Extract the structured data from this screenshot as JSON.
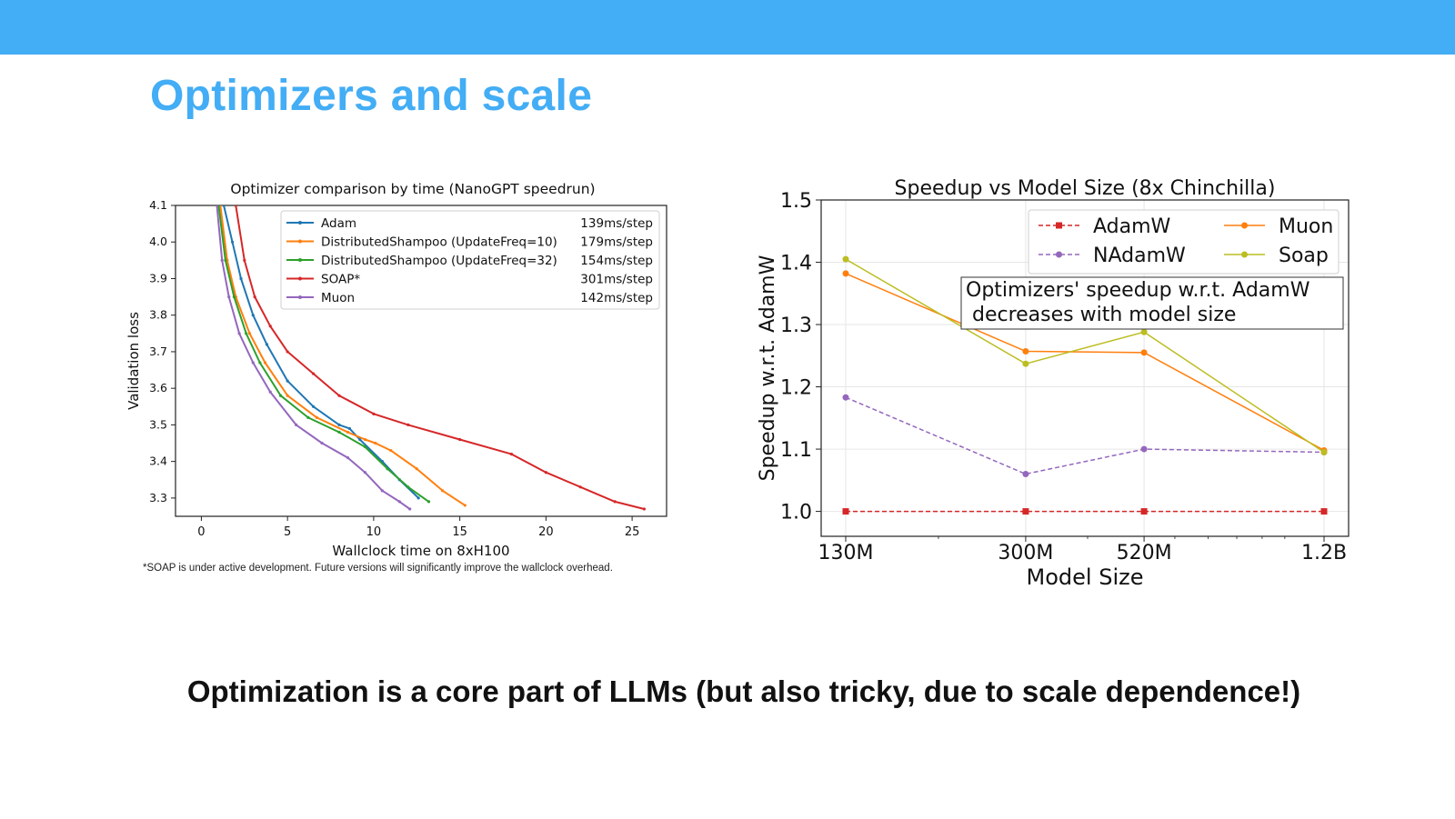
{
  "slide": {
    "title": "Optimizers and scale",
    "title_color": "#43adf5",
    "bar_color": "#43adf5",
    "footnote": "*SOAP is under active development. Future versions will significantly improve the wallclock overhead.",
    "tagline": "Optimization is a core part of LLMs (but also tricky, due to scale dependence!)"
  },
  "chart_data": [
    {
      "type": "line",
      "title": "Optimizer comparison by time (NanoGPT speedrun)",
      "xlabel": "Wallclock time on 8xH100",
      "ylabel": "Validation loss",
      "xlim": [
        -1.5,
        27
      ],
      "ylim": [
        3.25,
        4.1
      ],
      "xticks": [
        0,
        5,
        10,
        15,
        20,
        25
      ],
      "yticks": [
        3.3,
        3.4,
        3.5,
        3.6,
        3.7,
        3.8,
        3.9,
        4.0,
        4.1
      ],
      "ytick_labels": [
        "3.3",
        "3.4",
        "3.5",
        "3.6",
        "3.7",
        "3.8",
        "3.9",
        "4.0",
        "4.1"
      ],
      "legend_position": "top-right",
      "grid": false,
      "series": [
        {
          "name": "Adam",
          "note": "139ms/step",
          "color": "#1f77b4",
          "x": [
            1.3,
            1.8,
            2.3,
            3.0,
            3.8,
            5.0,
            6.5,
            8.0,
            8.6,
            9.2,
            10.5,
            11.5,
            12.6
          ],
          "y": [
            4.1,
            4.0,
            3.9,
            3.8,
            3.72,
            3.62,
            3.55,
            3.5,
            3.49,
            3.46,
            3.4,
            3.35,
            3.3
          ]
        },
        {
          "name": "DistributedShampoo (UpdateFreq=10)",
          "note": "179ms/step",
          "color": "#ff7f0e",
          "x": [
            1.1,
            1.5,
            2.0,
            2.8,
            3.7,
            5.0,
            6.7,
            8.5,
            9.5,
            10.1,
            11.0,
            12.5,
            14.0,
            15.3
          ],
          "y": [
            4.1,
            3.95,
            3.85,
            3.75,
            3.67,
            3.58,
            3.52,
            3.48,
            3.46,
            3.45,
            3.43,
            3.38,
            3.32,
            3.28
          ]
        },
        {
          "name": "DistributedShampoo (UpdateFreq=32)",
          "note": "154ms/step",
          "color": "#2ca02c",
          "x": [
            1.0,
            1.4,
            1.9,
            2.6,
            3.4,
            4.6,
            6.2,
            8.0,
            9.5,
            10.8,
            12.0,
            13.2
          ],
          "y": [
            4.1,
            3.95,
            3.85,
            3.75,
            3.67,
            3.58,
            3.52,
            3.48,
            3.44,
            3.38,
            3.33,
            3.29
          ]
        },
        {
          "name": "SOAP*",
          "note": "301ms/step",
          "color": "#d62728",
          "x": [
            2.0,
            2.5,
            3.1,
            4.0,
            5.0,
            6.5,
            8.0,
            10.0,
            12.0,
            15.0,
            18.0,
            20.0,
            22.0,
            24.0,
            25.7
          ],
          "y": [
            4.1,
            3.95,
            3.85,
            3.77,
            3.7,
            3.64,
            3.58,
            3.53,
            3.5,
            3.46,
            3.42,
            3.37,
            3.33,
            3.29,
            3.27
          ]
        },
        {
          "name": "Muon",
          "note": "142ms/step",
          "color": "#9467bd",
          "x": [
            0.9,
            1.2,
            1.6,
            2.2,
            3.0,
            4.0,
            5.5,
            7.0,
            8.5,
            9.5,
            10.5,
            11.5,
            12.1
          ],
          "y": [
            4.1,
            3.95,
            3.85,
            3.75,
            3.67,
            3.59,
            3.5,
            3.45,
            3.41,
            3.37,
            3.32,
            3.29,
            3.27
          ]
        }
      ]
    },
    {
      "type": "line",
      "title": "Speedup vs Model Size (8x Chinchilla)",
      "xlabel": "Model Size",
      "ylabel": "Speedup w.r.t. AdamW",
      "categories": [
        "130M",
        "300M",
        "520M",
        "1.2B"
      ],
      "x_positions": [
        130,
        300,
        520,
        1200
      ],
      "xscale": "log",
      "ylim": [
        0.96,
        1.5
      ],
      "yticks": [
        1.0,
        1.1,
        1.2,
        1.3,
        1.4,
        1.5
      ],
      "ytick_labels": [
        "1.0",
        "1.1",
        "1.2",
        "1.3",
        "1.4",
        "1.5"
      ],
      "legend_position": "top-right",
      "grid": true,
      "annotation": "Optimizers' speedup w.r.t. AdamW\n decreases with model size",
      "series": [
        {
          "name": "AdamW",
          "color": "#d62728",
          "dashed": true,
          "marker": "square",
          "values": [
            1.0,
            1.0,
            1.0,
            1.0
          ]
        },
        {
          "name": "NAdamW",
          "color": "#9467bd",
          "dashed": true,
          "marker": "circle",
          "values": [
            1.183,
            1.06,
            1.1,
            1.095
          ]
        },
        {
          "name": "Muon",
          "color": "#ff7f0e",
          "dashed": false,
          "marker": "circle",
          "values": [
            1.382,
            1.257,
            1.255,
            1.098
          ]
        },
        {
          "name": "Soap",
          "color": "#bcbd22",
          "dashed": false,
          "marker": "circle",
          "values": [
            1.405,
            1.237,
            1.288,
            1.095
          ]
        }
      ]
    }
  ]
}
